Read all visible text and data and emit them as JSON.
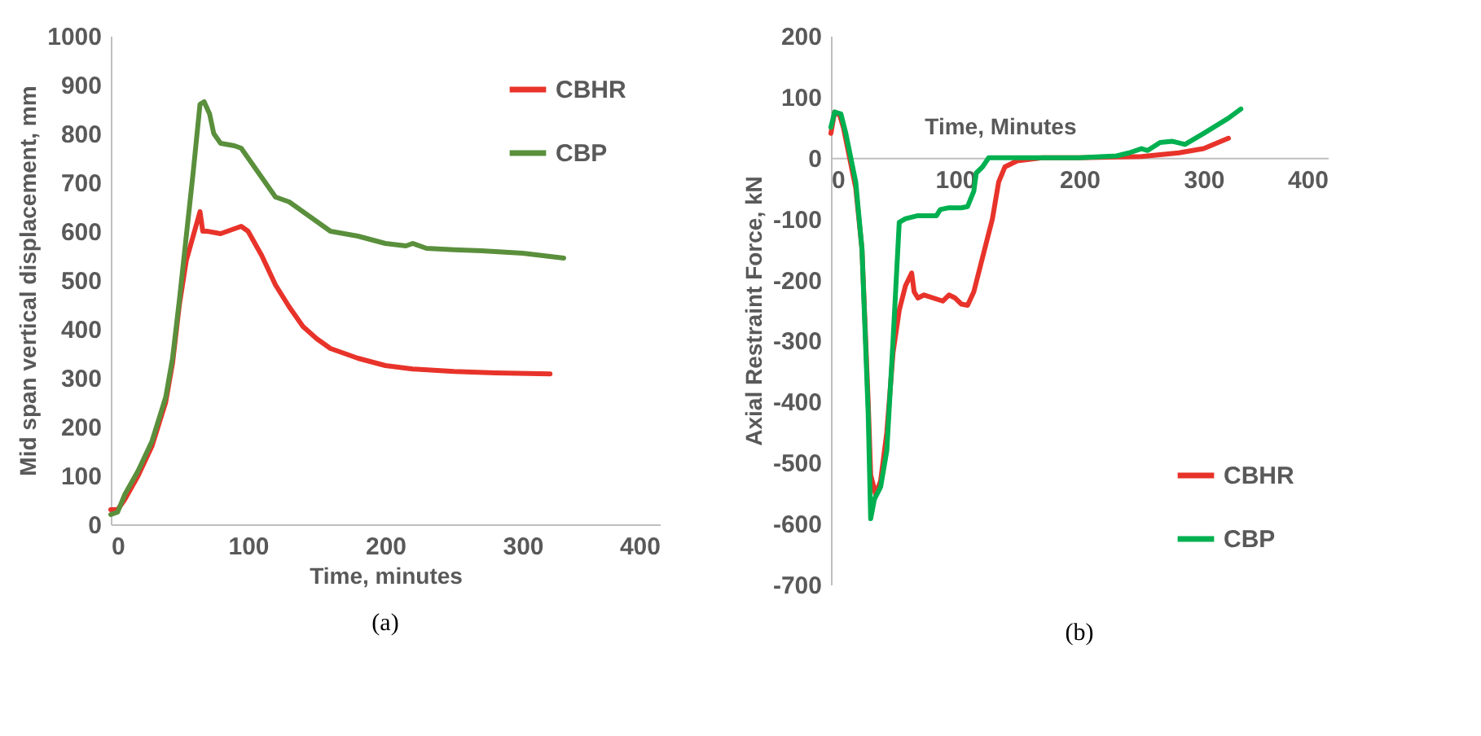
{
  "chart_data": [
    {
      "type": "line",
      "xlabel": "Time, minutes",
      "ylabel": "Mid span vertical displacement, mm",
      "xlim": [
        0,
        400
      ],
      "xticks": [
        0,
        100,
        200,
        300,
        400
      ],
      "ylim": [
        0,
        1000
      ],
      "yticks": [
        0,
        100,
        200,
        300,
        400,
        500,
        600,
        700,
        800,
        900,
        1000
      ],
      "grid": false,
      "legend": "top right",
      "annotations": [
        "(a)"
      ],
      "series": [
        {
          "name": "CBHR",
          "color": "#e8332a",
          "x": [
            0,
            5,
            10,
            20,
            30,
            40,
            45,
            50,
            55,
            60,
            65,
            67,
            70,
            80,
            90,
            95,
            100,
            110,
            120,
            130,
            140,
            150,
            160,
            180,
            200,
            220,
            250,
            280,
            320
          ],
          "values": [
            30,
            30,
            50,
            100,
            160,
            250,
            330,
            450,
            540,
            590,
            640,
            600,
            600,
            595,
            605,
            610,
            600,
            550,
            490,
            445,
            405,
            380,
            360,
            340,
            325,
            318,
            313,
            310,
            308
          ]
        },
        {
          "name": "CBP",
          "color": "#5a8f3c",
          "x": [
            0,
            5,
            10,
            20,
            30,
            40,
            45,
            50,
            55,
            60,
            65,
            68,
            72,
            75,
            80,
            90,
            95,
            100,
            110,
            120,
            130,
            150,
            160,
            180,
            200,
            215,
            220,
            230,
            250,
            270,
            300,
            330
          ],
          "values": [
            20,
            25,
            60,
            110,
            170,
            260,
            340,
            460,
            590,
            720,
            860,
            865,
            840,
            800,
            780,
            775,
            770,
            750,
            710,
            670,
            660,
            620,
            600,
            590,
            575,
            570,
            575,
            565,
            562,
            560,
            555,
            545
          ]
        }
      ]
    },
    {
      "type": "line",
      "xlabel": "Time, Minutes",
      "ylabel": "Axial Restraint Force, kN",
      "xlim": [
        0,
        400
      ],
      "xticks": [
        0,
        100,
        200,
        300,
        400
      ],
      "ylim": [
        -700,
        200
      ],
      "yticks": [
        -700,
        -600,
        -500,
        -400,
        -300,
        -200,
        -100,
        0,
        100,
        200
      ],
      "grid": false,
      "legend": "bottom right",
      "annotations": [
        "(b)"
      ],
      "series": [
        {
          "name": "CBHR",
          "color": "#e8332a",
          "x": [
            0,
            3,
            7,
            10,
            20,
            25,
            30,
            32,
            36,
            40,
            45,
            50,
            55,
            60,
            65,
            67,
            70,
            75,
            90,
            95,
            100,
            105,
            110,
            115,
            120,
            130,
            135,
            140,
            150,
            170,
            200,
            250,
            280,
            300,
            320
          ],
          "values": [
            40,
            75,
            70,
            50,
            -50,
            -150,
            -400,
            -520,
            -552,
            -530,
            -450,
            -320,
            -250,
            -210,
            -189,
            -220,
            -230,
            -225,
            -235,
            -225,
            -230,
            -240,
            -242,
            -220,
            -180,
            -100,
            -40,
            -15,
            -5,
            0,
            0,
            2,
            8,
            15,
            32
          ]
        },
        {
          "name": "CBP",
          "color": "#00b050",
          "x": [
            0,
            3,
            8,
            12,
            20,
            25,
            30,
            32,
            35,
            40,
            45,
            50,
            55,
            60,
            70,
            85,
            88,
            95,
            105,
            110,
            115,
            117,
            122,
            127,
            150,
            200,
            230,
            240,
            250,
            255,
            265,
            275,
            285,
            300,
            320,
            330
          ],
          "values": [
            50,
            75,
            72,
            40,
            -40,
            -150,
            -420,
            -592,
            -560,
            -540,
            -480,
            -300,
            -106,
            -100,
            -95,
            -95,
            -85,
            -82,
            -82,
            -80,
            -55,
            -25,
            -15,
            0,
            0,
            0,
            3,
            8,
            15,
            12,
            25,
            27,
            22,
            40,
            65,
            80
          ]
        }
      ]
    }
  ]
}
